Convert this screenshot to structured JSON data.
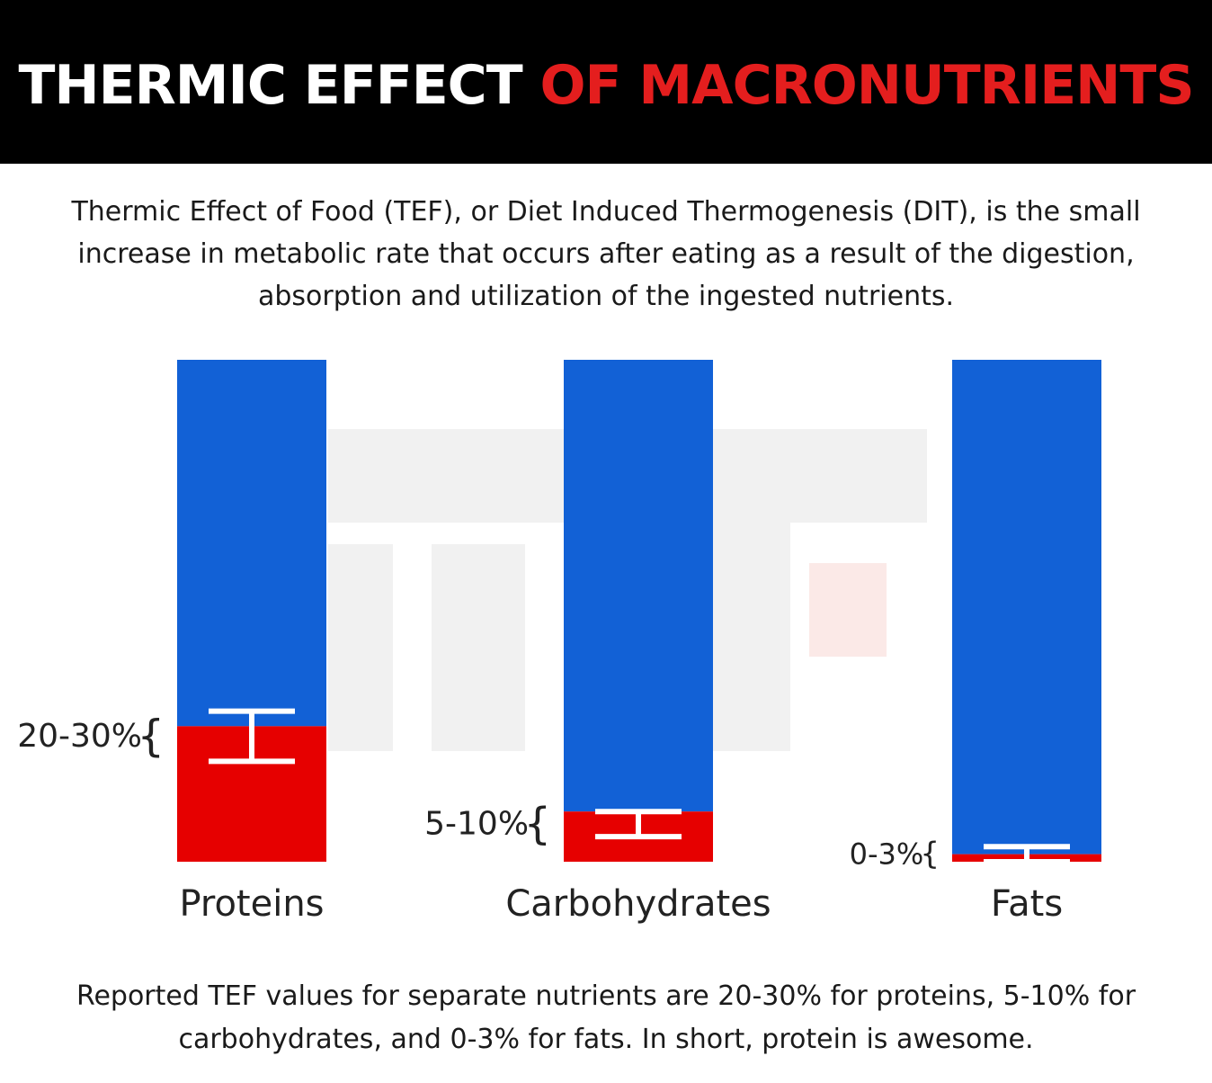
{
  "header": {
    "title_part1": "THERMIC EFFECT",
    "title_part2": "OF MACRONUTRIENTS",
    "title_color": "#ffffff",
    "accent_color": "#e41e1e",
    "background": "#000000"
  },
  "intro": {
    "line1": "Thermic Effect of Food (TEF), or Diet Induced Thermogenesis (DIT), is the small",
    "line2": "increase in metabolic rate that occurs after eating as a result of the digestion,",
    "line3": "absorption and utilization of the ingested nutrients."
  },
  "chart_data": {
    "type": "bar",
    "stacked": true,
    "categories": [
      "Proteins",
      "Carbohydrates",
      "Fats"
    ],
    "unit": "%",
    "ylim": [
      0,
      100
    ],
    "grid": false,
    "legend": "none",
    "series": [
      {
        "color": "#e60000",
        "values": [
          27,
          10,
          1.5
        ]
      },
      {
        "color": "#1261d6",
        "values": [
          73,
          90,
          98.5
        ]
      }
    ],
    "ranges": [
      {
        "label": "20-30%",
        "low": 20,
        "high": 30
      },
      {
        "label": "5-10%",
        "low": 5,
        "high": 10
      },
      {
        "label": "0-3%",
        "low": 0,
        "high": 3
      }
    ]
  },
  "footer": {
    "line1": "Reported TEF values for separate nutrients are 20-30% for proteins, 5-10% for",
    "line2": "carbohydrates, and 0-3% for fats. In short, protein is awesome."
  }
}
